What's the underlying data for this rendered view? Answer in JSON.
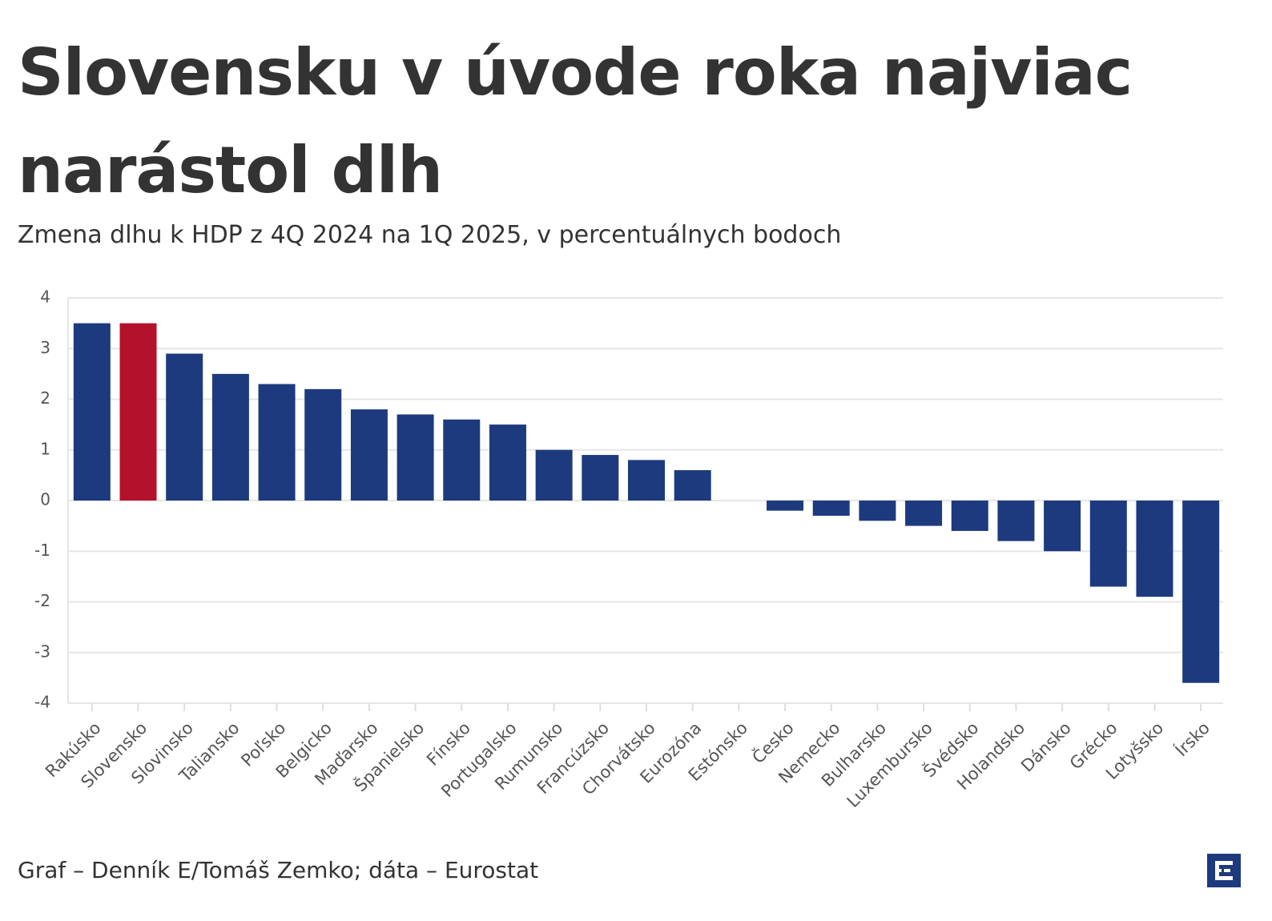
{
  "chart_data": {
    "type": "bar",
    "title": "Slovensku v úvode roka najviac narástol dlh",
    "subtitle": "Zmena dlhu k HDP z 4Q 2024 na 1Q 2025, v percentuálnych bodoch",
    "source": "Graf – Denník E/Tomáš Zemko; dáta – Eurostat",
    "categories": [
      "Rakúsko",
      "Slovensko",
      "Slovinsko",
      "Taliansko",
      "Poľsko",
      "Belgicko",
      "Maďarsko",
      "Španielsko",
      "Fínsko",
      "Portugalsko",
      "Rumunsko",
      "Francúzsko",
      "Chorvátsko",
      "Eurozóna",
      "Estónsko",
      "Česko",
      "Nemecko",
      "Bulharsko",
      "Luxembursko",
      "Švédsko",
      "Holandsko",
      "Dánsko",
      "Grécko",
      "Lotyšsko",
      "Írsko"
    ],
    "values": [
      3.5,
      3.5,
      2.9,
      2.5,
      2.3,
      2.2,
      1.8,
      1.7,
      1.6,
      1.5,
      1.0,
      0.9,
      0.8,
      0.6,
      0,
      -0.2,
      -0.3,
      -0.4,
      -0.5,
      -0.6,
      -0.8,
      -1.0,
      -1.7,
      -1.9,
      -3.6
    ],
    "colors": [
      "#1d3a7e",
      "#b4112c",
      "#1d3a7e",
      "#1d3a7e",
      "#1d3a7e",
      "#1d3a7e",
      "#1d3a7e",
      "#1d3a7e",
      "#1d3a7e",
      "#1d3a7e",
      "#1d3a7e",
      "#1d3a7e",
      "#1d3a7e",
      "#1d3a7e",
      "#1d3a7e",
      "#1d3a7e",
      "#1d3a7e",
      "#1d3a7e",
      "#1d3a7e",
      "#1d3a7e",
      "#1d3a7e",
      "#1d3a7e",
      "#1d3a7e",
      "#1d3a7e",
      "#1d3a7e"
    ],
    "ylim": [
      -4,
      4
    ],
    "yticks": [
      -4,
      -3,
      -2,
      -1,
      0,
      1,
      2,
      3,
      4
    ],
    "grid": true
  }
}
